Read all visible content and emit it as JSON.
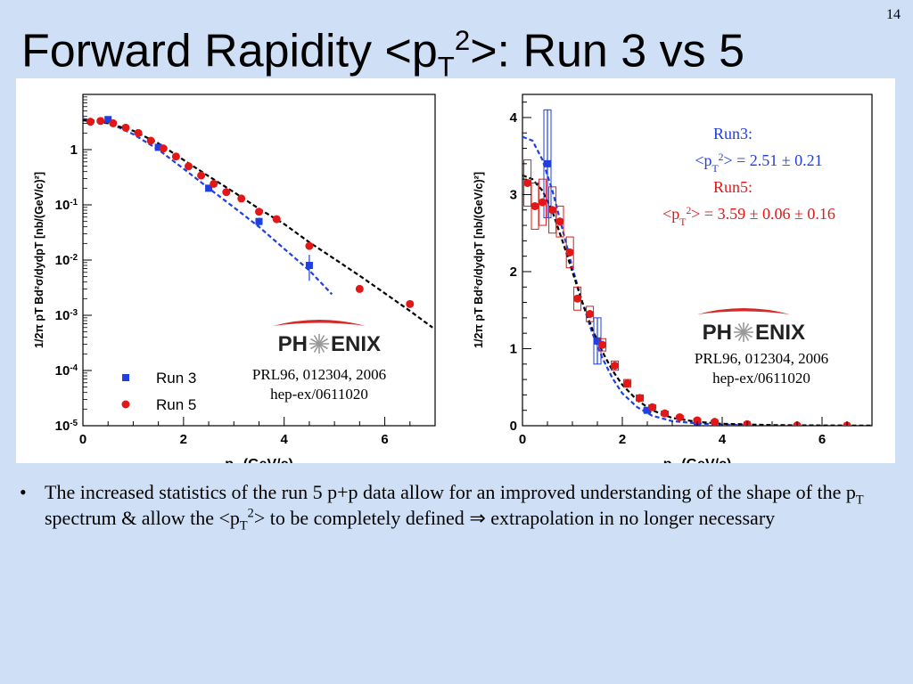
{
  "slide": {
    "number": "14",
    "title": {
      "part1": "Forward Rapidity <p",
      "sub": "T",
      "sup": "2",
      "part2": ">: Run 3 vs 5"
    },
    "bullet": {
      "mark": "•",
      "t1": "The increased statistics of the run 5 p+p data allow for an improved understanding of the shape of the p",
      "sub": "T",
      "t2": " spectrum & allow the <p",
      "sub2": "T",
      "sup2": "2",
      "t3": "> to be completely defined ",
      "arrow": "⇒",
      "t4": " extrapolation in no longer necessary"
    }
  },
  "colors": {
    "run3": "#1f3fe0",
    "run5": "#e21818",
    "fit": "#000000",
    "logo_swoosh": "#d32a2a"
  },
  "chart_data": [
    {
      "type": "scatter",
      "yscale": "log",
      "xlabel": "pT (GeV/c)",
      "xlabel_main": "p",
      "xlabel_sub": "T",
      "xlabel_tail": " (GeV/c)",
      "ylabel": "1/2π pT Bd²σ/dydpT [nb/(GeV/c)²]",
      "xlim": [
        0,
        7
      ],
      "ylim": [
        1e-05,
        10
      ],
      "xticks": [
        0,
        2,
        4,
        6
      ],
      "yticks": [
        {
          "value": 1e-05,
          "base": "10",
          "exp": "-5"
        },
        {
          "value": 0.0001,
          "base": "10",
          "exp": "-4"
        },
        {
          "value": 0.001,
          "base": "10",
          "exp": "-3"
        },
        {
          "value": 0.01,
          "base": "10",
          "exp": "-2"
        },
        {
          "value": 0.1,
          "base": "10",
          "exp": "-1"
        },
        {
          "value": 1,
          "base": "1",
          "exp": ""
        }
      ],
      "legend": [
        {
          "label": "Run 3",
          "series": "run3"
        },
        {
          "label": "Run 5",
          "series": "run5"
        }
      ],
      "logo": {
        "text_left": "PH",
        "text_right": "ENIX"
      },
      "reference": [
        "PRL96, 012304, 2006",
        "hep-ex/0611020"
      ],
      "series": [
        {
          "name": "Run 3",
          "key": "run3",
          "x": [
            0.5,
            1.5,
            2.5,
            3.5,
            4.5
          ],
          "y": [
            3.5,
            1.1,
            0.2,
            0.05,
            0.008
          ],
          "err_low": [
            3.3,
            0.97,
            0.175,
            0.042,
            0.0042
          ],
          "err_high": [
            3.7,
            1.25,
            0.225,
            0.058,
            0.0125
          ]
        },
        {
          "name": "Run 5",
          "key": "run5",
          "x": [
            0.15,
            0.35,
            0.6,
            0.85,
            1.1,
            1.35,
            1.6,
            1.85,
            2.1,
            2.35,
            2.6,
            2.85,
            3.15,
            3.5,
            3.85,
            4.5,
            5.5,
            6.5
          ],
          "y": [
            3.2,
            3.3,
            3.0,
            2.5,
            2.0,
            1.45,
            1.05,
            0.75,
            0.5,
            0.34,
            0.24,
            0.17,
            0.13,
            0.075,
            0.055,
            0.018,
            0.003,
            0.0016
          ]
        }
      ],
      "fits": [
        {
          "name": "Run 3 fit",
          "key": "run3",
          "x": [
            0,
            0.5,
            1,
            1.5,
            2,
            2.5,
            3,
            3.5,
            4,
            4.5,
            4.95
          ],
          "y": [
            3.6,
            3.1,
            1.9,
            1.0,
            0.45,
            0.2,
            0.09,
            0.04,
            0.016,
            0.0065,
            0.0024
          ]
        },
        {
          "name": "Run 5 fit",
          "key": "run5",
          "x": [
            0,
            0.5,
            1,
            1.5,
            2,
            2.5,
            3,
            3.5,
            4,
            4.5,
            5,
            5.5,
            6,
            6.5,
            6.95
          ],
          "y": [
            3.4,
            3.0,
            2.2,
            1.3,
            0.65,
            0.33,
            0.17,
            0.085,
            0.045,
            0.021,
            0.0105,
            0.0052,
            0.0025,
            0.0012,
            0.0006
          ]
        }
      ]
    },
    {
      "type": "scatter",
      "yscale": "linear",
      "xlabel": "pT (GeV/c)",
      "xlabel_main": "p",
      "xlabel_sub": "T",
      "xlabel_tail": " (GeV/c)",
      "ylabel": "1/2π pT Bd²σ/dydpT [nb/(GeV/c)²]",
      "xlim": [
        0,
        7
      ],
      "ylim": [
        0,
        4.3
      ],
      "xticks": [
        0,
        2,
        4,
        6
      ],
      "yticks": [
        0,
        1,
        2,
        3,
        4
      ],
      "logo": {
        "text_left": "PH",
        "text_right": "ENIX"
      },
      "reference": [
        "PRL96, 012304, 2006",
        "hep-ex/0611020"
      ],
      "annotations": {
        "run3_label": "Run3:",
        "run3_value": "<pT²> = 2.51 ± 0.21",
        "run3_pre": "<p",
        "run3_sub": "T",
        "run3_sup": "2",
        "run3_post": "> = 2.51 ± 0.21",
        "run5_label": "Run5:",
        "run5_value": "<pT²> = 3.59 ± 0.06 ± 0.16",
        "run5_pre": "<p",
        "run5_sub": "T",
        "run5_sup": "2",
        "run5_post": "> = 3.59 ± 0.06 ± 0.16"
      },
      "series": [
        {
          "name": "Run 3",
          "key": "run3",
          "x": [
            0.5,
            1.5,
            2.5,
            3.5,
            4.5
          ],
          "y": [
            3.4,
            1.1,
            0.2,
            0.05,
            0.008
          ],
          "err_low": [
            2.7,
            0.8,
            0.17,
            0.04,
            0.004
          ],
          "err_high": [
            4.1,
            1.4,
            0.23,
            0.06,
            0.012
          ]
        },
        {
          "name": "Run 5",
          "key": "run5",
          "x": [
            0.1,
            0.25,
            0.4,
            0.6,
            0.75,
            0.95,
            1.1,
            1.35,
            1.6,
            1.85,
            2.1,
            2.35,
            2.6,
            2.85,
            3.15,
            3.5,
            3.85,
            4.5,
            5.5,
            6.5
          ],
          "y": [
            3.15,
            2.85,
            2.9,
            2.8,
            2.65,
            2.25,
            1.65,
            1.45,
            1.05,
            0.78,
            0.55,
            0.36,
            0.24,
            0.16,
            0.11,
            0.07,
            0.05,
            0.02,
            0.004,
            0.002
          ],
          "sys_h": [
            0.3,
            0.3,
            0.3,
            0.3,
            0.2,
            0.2,
            0.15,
            0.1,
            0.08,
            0.06,
            0.05,
            0.04,
            0.03,
            0.03,
            0.02,
            0.02,
            0.02,
            0.01,
            0.01,
            0.01
          ]
        }
      ],
      "fits": [
        {
          "name": "Run 3 fit",
          "key": "run3",
          "x": [
            0,
            0.2,
            0.4,
            0.6,
            0.8,
            1.0,
            1.2,
            1.4,
            1.6,
            1.8,
            2.0,
            2.3,
            2.6,
            3.0,
            3.5,
            4.0,
            4.5
          ],
          "y": [
            3.75,
            3.7,
            3.45,
            3.05,
            2.55,
            2.05,
            1.6,
            1.2,
            0.88,
            0.62,
            0.42,
            0.24,
            0.13,
            0.06,
            0.03,
            0.015,
            0.007
          ]
        },
        {
          "name": "Run 5 fit",
          "key": "run5",
          "x": [
            0,
            0.2,
            0.4,
            0.6,
            0.8,
            1.0,
            1.2,
            1.4,
            1.6,
            1.8,
            2.0,
            2.3,
            2.6,
            3.0,
            3.5,
            4.0,
            5.0,
            6.0,
            7.0
          ],
          "y": [
            3.25,
            3.2,
            3.05,
            2.78,
            2.4,
            2.0,
            1.6,
            1.25,
            0.96,
            0.72,
            0.53,
            0.33,
            0.2,
            0.1,
            0.05,
            0.025,
            0.008,
            0.003,
            0.001
          ]
        }
      ]
    }
  ]
}
